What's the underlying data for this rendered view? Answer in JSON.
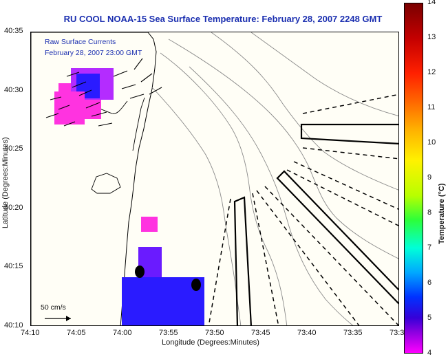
{
  "map": {
    "title": "RU COOL  NOAA-15  Sea Surface Temperature:  February 28, 2007 2248 GMT",
    "legend": {
      "line1": "Raw Surface Currents",
      "line2": "February 28, 2007 23:00 GMT"
    },
    "scale_label": "50 cm/s",
    "xlabel": "Longitude (Degrees:Minutes)",
    "ylabel": "Latitude (Degrees:Minutes)",
    "x_ticks": [
      "74:10",
      "74:05",
      "74:00",
      "73:55",
      "73:50",
      "73:45",
      "73:40",
      "73:35",
      "73:3"
    ],
    "y_ticks": [
      "40:35",
      "40:30",
      "40:25",
      "40:20",
      "40:15",
      "40:10"
    ],
    "colorbar": {
      "title": "Temperature (°C)",
      "ticks": [
        "14",
        "13",
        "12",
        "11",
        "10",
        "9",
        "8",
        "7",
        "6",
        "5",
        "4"
      ]
    },
    "colors": {
      "title": "#1b2fb0",
      "land": "#fffef6",
      "sst_cold": "#2a1bff",
      "sst_magenta": "#ff33e0"
    }
  }
}
